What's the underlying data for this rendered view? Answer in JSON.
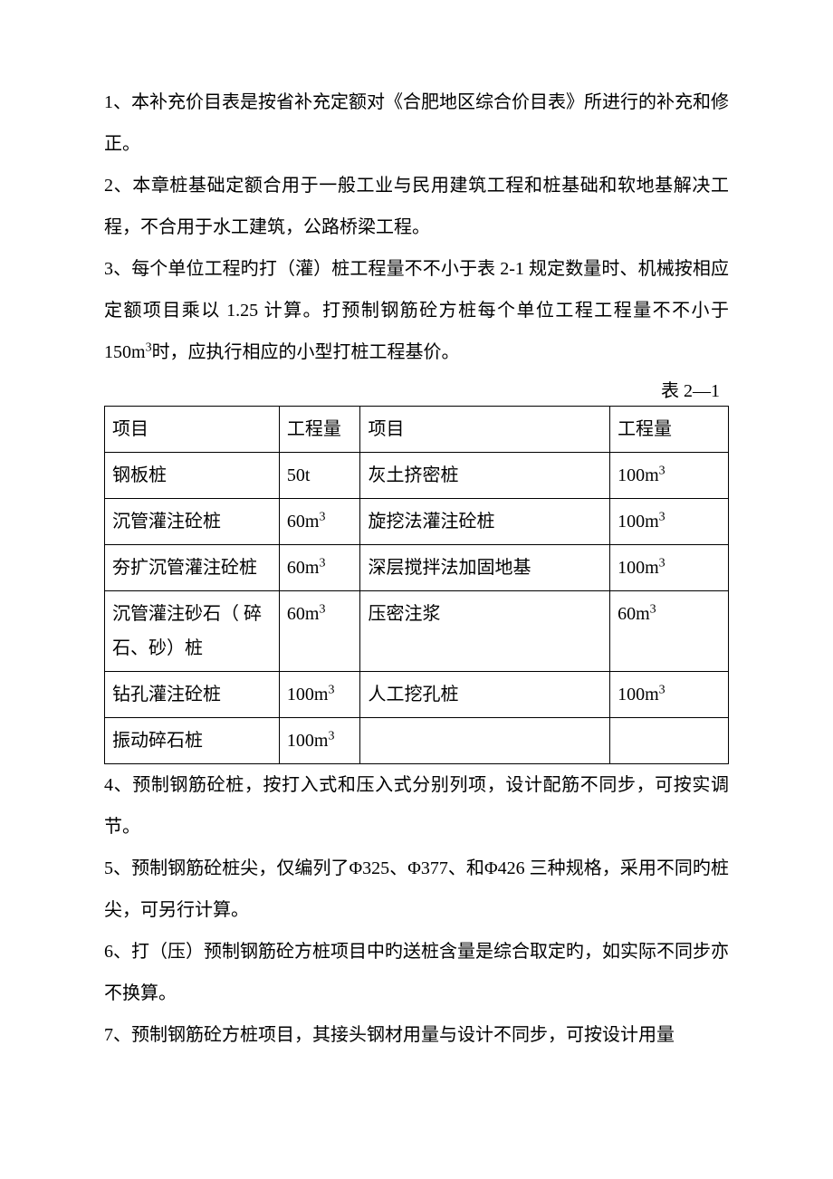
{
  "paragraphs": {
    "p1": "1、本补充价目表是按省补充定额对《合肥地区综合价目表》所进行的补充和修正。",
    "p2": "2、本章桩基础定额合用于一般工业与民用建筑工程和桩基础和软地基解决工程，不合用于水工建筑，公路桥梁工程。",
    "p3_a": "3、每个单位工程旳打（灌）桩工程量不不小于表 2-1 规定数量时、机械按相应定额项目乘以 1.25 计算。打预制钢筋砼方桩每个单位工程工程量不不小于 150m",
    "p3_b": "时，应执行相应的小型打桩工程基价。",
    "p4": "4、预制钢筋砼桩，按打入式和压入式分别列项，设计配筋不同步，可按实调节。",
    "p5": "5、预制钢筋砼桩尖，仅编列了Φ325、Φ377、和Φ426 三种规格，采用不同旳桩尖，可另行计算。",
    "p6": "6、打（压）预制钢筋砼方桩项目中旳送桩含量是综合取定旳，如实际不同步亦不换算。",
    "p7": "7、预制钢筋砼方桩项目，其接头钢材用量与设计不同步，可按设计用量"
  },
  "table_label": "表 2—1",
  "table": {
    "header": {
      "h1": "项目",
      "h2": "工程量",
      "h3": "项目",
      "h4": "工程量"
    },
    "rows": [
      {
        "c1": "钢板桩",
        "c2": "50t",
        "c2_sup": "",
        "c3": "灰土挤密桩",
        "c4": "100m",
        "c4_sup": "3"
      },
      {
        "c1": "沉管灌注砼桩",
        "c2": "60m",
        "c2_sup": "3",
        "c3": "旋挖法灌注砼桩",
        "c4": "100m",
        "c4_sup": "3"
      },
      {
        "c1": "夯扩沉管灌注砼桩",
        "c2": "60m",
        "c2_sup": "3",
        "c3": "深层搅拌法加固地基",
        "c4": "100m",
        "c4_sup": "3"
      },
      {
        "c1": "沉管灌注砂石（ 碎石、砂）桩",
        "c2": "60m",
        "c2_sup": "3",
        "c3": "压密注浆",
        "c4": "60m",
        "c4_sup": "3"
      },
      {
        "c1": "钻孔灌注砼桩",
        "c2": "100m",
        "c2_sup": "3",
        "c3": "人工挖孔桩",
        "c4": "100m",
        "c4_sup": "3"
      },
      {
        "c1": "振动碎石桩",
        "c2": "100m",
        "c2_sup": "3",
        "c3": "",
        "c4": "",
        "c4_sup": ""
      }
    ]
  },
  "sup3": "3"
}
